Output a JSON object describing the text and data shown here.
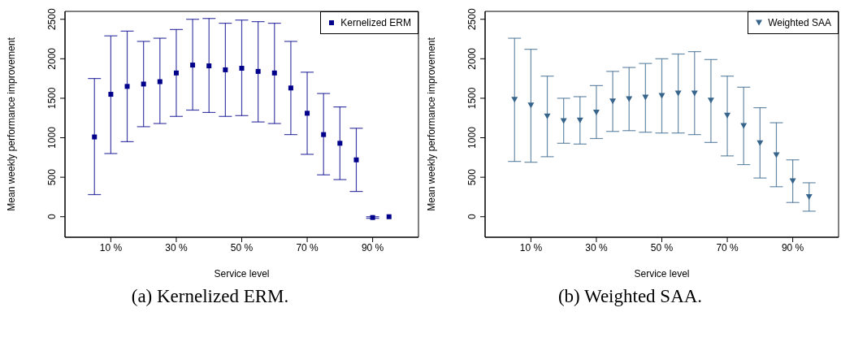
{
  "chart_data": [
    {
      "type": "scatter",
      "annotations": [
        "(a) Kernelized ERM."
      ],
      "xlabel": "Service level",
      "ylabel": "Mean weekly performance improvement",
      "x": [
        5,
        10,
        15,
        20,
        25,
        30,
        35,
        40,
        45,
        50,
        55,
        60,
        65,
        70,
        75,
        80,
        85,
        90,
        95
      ],
      "series": [
        {
          "name": "Kernelized ERM",
          "color": "#00008b",
          "marker": "square",
          "values": [
            1010,
            1550,
            1650,
            1680,
            1710,
            1820,
            1920,
            1910,
            1860,
            1880,
            1840,
            1820,
            1630,
            1310,
            1040,
            930,
            720,
            -10,
            0
          ],
          "errors": [
            [
              280,
              1750
            ],
            [
              800,
              2290
            ],
            [
              950,
              2350
            ],
            [
              1140,
              2220
            ],
            [
              1180,
              2260
            ],
            [
              1270,
              2370
            ],
            [
              1350,
              2500
            ],
            [
              1320,
              2510
            ],
            [
              1270,
              2450
            ],
            [
              1280,
              2490
            ],
            [
              1200,
              2470
            ],
            [
              1180,
              2450
            ],
            [
              1040,
              2220
            ],
            [
              790,
              1830
            ],
            [
              530,
              1560
            ],
            [
              470,
              1390
            ],
            [
              320,
              1120
            ],
            [
              -20,
              0
            ],
            null
          ]
        }
      ],
      "xlim": [
        -4,
        104
      ],
      "xticks": [
        {
          "value": 10,
          "label": "10 %"
        },
        {
          "value": 30,
          "label": "30 %"
        },
        {
          "value": 50,
          "label": "50 %"
        },
        {
          "value": 70,
          "label": "70 %"
        },
        {
          "value": 90,
          "label": "90 %"
        }
      ],
      "ylim": [
        -260,
        2600
      ],
      "yticks": [
        0,
        500,
        1000,
        1500,
        2000,
        2500
      ],
      "grid": false,
      "legend": "top right"
    },
    {
      "type": "scatter",
      "annotations": [
        "(b) Weighted SAA."
      ],
      "xlabel": "Service level",
      "ylabel": "Mean weekly performance improvement",
      "x": [
        5,
        10,
        15,
        20,
        25,
        30,
        35,
        40,
        45,
        50,
        55,
        60,
        65,
        70,
        75,
        80,
        85,
        90,
        95
      ],
      "series": [
        {
          "name": "Weighted SAA",
          "color": "#36648b",
          "marker": "triangle",
          "values": [
            1480,
            1410,
            1270,
            1210,
            1220,
            1320,
            1460,
            1490,
            1510,
            1530,
            1560,
            1560,
            1470,
            1280,
            1150,
            930,
            780,
            450,
            250
          ],
          "errors": [
            [
              700,
              2260
            ],
            [
              690,
              2120
            ],
            [
              760,
              1780
            ],
            [
              930,
              1500
            ],
            [
              920,
              1520
            ],
            [
              990,
              1660
            ],
            [
              1080,
              1840
            ],
            [
              1090,
              1890
            ],
            [
              1070,
              1940
            ],
            [
              1060,
              2000
            ],
            [
              1060,
              2060
            ],
            [
              1040,
              2090
            ],
            [
              940,
              1990
            ],
            [
              770,
              1780
            ],
            [
              660,
              1640
            ],
            [
              490,
              1380
            ],
            [
              380,
              1190
            ],
            [
              180,
              720
            ],
            [
              70,
              430
            ]
          ]
        }
      ],
      "xlim": [
        -4,
        104
      ],
      "xticks": [
        {
          "value": 10,
          "label": "10 %"
        },
        {
          "value": 30,
          "label": "30 %"
        },
        {
          "value": 50,
          "label": "50 %"
        },
        {
          "value": 70,
          "label": "70 %"
        },
        {
          "value": 90,
          "label": "90 %"
        }
      ],
      "ylim": [
        -260,
        2600
      ],
      "yticks": [
        0,
        500,
        1000,
        1500,
        2000,
        2500
      ],
      "grid": false,
      "legend": "top right"
    }
  ]
}
